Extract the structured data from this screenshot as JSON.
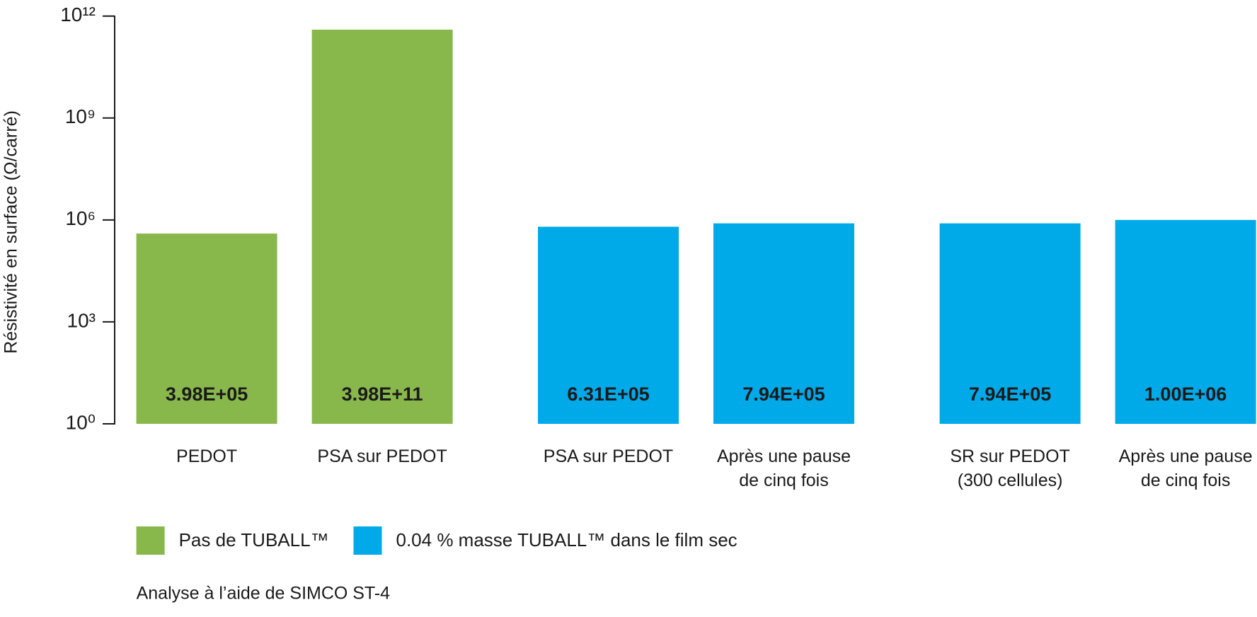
{
  "chart_data": {
    "type": "bar",
    "y_label": "Résistivité en surface (Ω/carré)",
    "categories": [
      "PEDOT",
      "PSA sur PEDOT",
      "PSA sur PEDOT",
      "Après une pause de cinq fois",
      "SR sur PEDOT (300 cellules)",
      "Après une pause de cinq fois"
    ],
    "series": [
      {
        "name": "Pas de TUBALL™",
        "color": "#88b84b",
        "values": [
          398000,
          398000000000,
          null,
          null,
          null,
          null
        ],
        "value_labels": [
          "3.98E+05",
          "3.98E+11",
          null,
          null,
          null,
          null
        ]
      },
      {
        "name": "0.04 % masse TUBALL™ dans le film sec",
        "color": "#00a9e8",
        "values": [
          null,
          null,
          631000,
          794000,
          794000,
          1000000
        ],
        "value_labels": [
          null,
          null,
          "6.31E+05",
          "7.94E+05",
          "7.94E+05",
          "1.00E+06"
        ]
      }
    ],
    "yscale": "log",
    "ylim": [
      1,
      1000000000000
    ],
    "yticks": [
      {
        "value": 1,
        "label": "10⁰"
      },
      {
        "value": 1000,
        "label": "10³"
      },
      {
        "value": 1000000,
        "label": "10⁶"
      },
      {
        "value": 1000000000,
        "label": "10⁹"
      },
      {
        "value": 1000000000000,
        "label": "10¹²"
      }
    ],
    "grid": false,
    "footnote": "Analyse à l’aide de SIMCO ST-4"
  }
}
